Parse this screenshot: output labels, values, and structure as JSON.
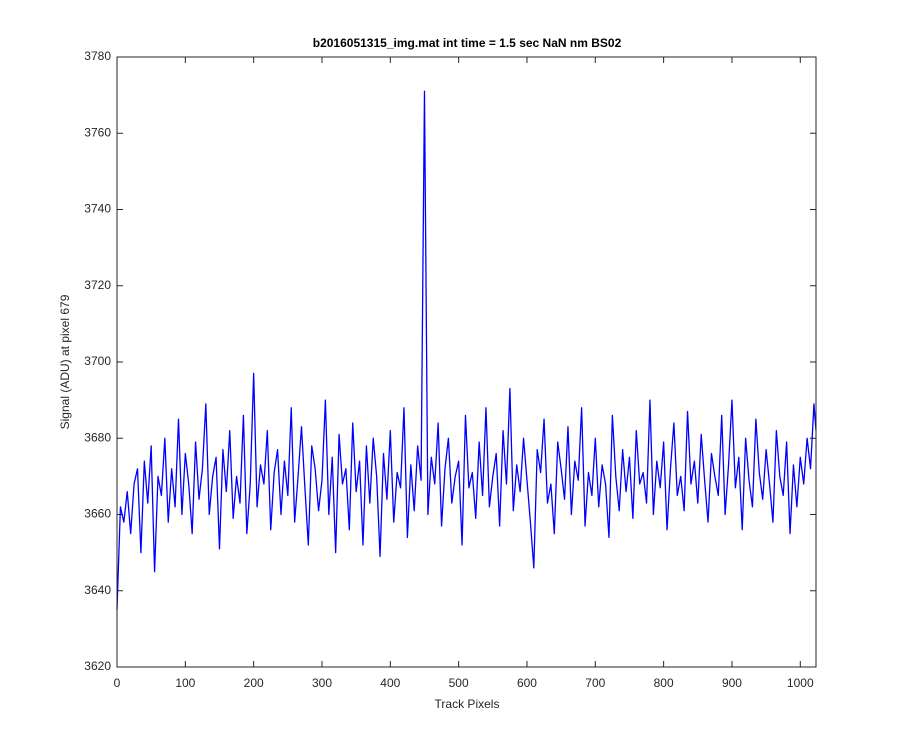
{
  "chart_data": {
    "type": "line",
    "title": "b2016051315_img.mat int time = 1.5 sec  NaN nm BS02",
    "x_label": "Track Pixels",
    "y_label": "Signal (ADU) at pixel 679",
    "xlim": [
      0,
      1023
    ],
    "ylim": [
      3620,
      3780
    ],
    "xticks": [
      0,
      100,
      200,
      300,
      400,
      500,
      600,
      700,
      800,
      900,
      1000
    ],
    "yticks": [
      3620,
      3640,
      3660,
      3680,
      3700,
      3720,
      3740,
      3760,
      3780
    ],
    "grid": false,
    "x": [
      0,
      5,
      10,
      15,
      20,
      25,
      30,
      35,
      40,
      45,
      50,
      55,
      60,
      65,
      70,
      75,
      80,
      85,
      90,
      95,
      100,
      105,
      110,
      115,
      120,
      125,
      130,
      135,
      140,
      145,
      150,
      155,
      160,
      165,
      170,
      175,
      180,
      185,
      190,
      195,
      200,
      205,
      210,
      215,
      220,
      225,
      230,
      235,
      240,
      245,
      250,
      255,
      260,
      265,
      270,
      275,
      280,
      285,
      290,
      295,
      300,
      305,
      310,
      315,
      320,
      325,
      330,
      335,
      340,
      345,
      350,
      355,
      360,
      365,
      370,
      375,
      380,
      385,
      390,
      395,
      400,
      405,
      410,
      415,
      420,
      425,
      430,
      435,
      440,
      445,
      450,
      455,
      460,
      465,
      470,
      475,
      480,
      485,
      490,
      495,
      500,
      505,
      510,
      515,
      520,
      525,
      530,
      535,
      540,
      545,
      550,
      555,
      560,
      565,
      570,
      575,
      580,
      585,
      590,
      595,
      600,
      605,
      610,
      615,
      620,
      625,
      630,
      635,
      640,
      645,
      650,
      655,
      660,
      665,
      670,
      675,
      680,
      685,
      690,
      695,
      700,
      705,
      710,
      715,
      720,
      725,
      730,
      735,
      740,
      745,
      750,
      755,
      760,
      765,
      770,
      775,
      780,
      785,
      790,
      795,
      800,
      805,
      810,
      815,
      820,
      825,
      830,
      835,
      840,
      845,
      850,
      855,
      860,
      865,
      870,
      875,
      880,
      885,
      890,
      895,
      900,
      905,
      910,
      915,
      920,
      925,
      930,
      935,
      940,
      945,
      950,
      955,
      960,
      965,
      970,
      975,
      980,
      985,
      990,
      995,
      1000,
      1005,
      1010,
      1015,
      1020,
      1023
    ],
    "series": [
      {
        "name": "Signal",
        "color": "#0000ff",
        "values": [
          3635,
          3662,
          3658,
          3666,
          3655,
          3668,
          3672,
          3650,
          3674,
          3663,
          3678,
          3645,
          3670,
          3665,
          3680,
          3658,
          3672,
          3662,
          3685,
          3660,
          3676,
          3668,
          3655,
          3679,
          3664,
          3672,
          3689,
          3660,
          3670,
          3675,
          3651,
          3677,
          3666,
          3682,
          3659,
          3670,
          3663,
          3686,
          3655,
          3668,
          3697,
          3662,
          3673,
          3668,
          3682,
          3656,
          3671,
          3677,
          3660,
          3674,
          3665,
          3688,
          3658,
          3670,
          3683,
          3667,
          3652,
          3678,
          3672,
          3661,
          3669,
          3690,
          3660,
          3675,
          3650,
          3681,
          3668,
          3672,
          3656,
          3684,
          3666,
          3674,
          3652,
          3678,
          3663,
          3680,
          3670,
          3649,
          3676,
          3664,
          3682,
          3658,
          3671,
          3667,
          3688,
          3654,
          3673,
          3661,
          3678,
          3669,
          3771,
          3660,
          3675,
          3668,
          3684,
          3657,
          3672,
          3680,
          3663,
          3670,
          3674,
          3652,
          3686,
          3667,
          3671,
          3659,
          3679,
          3665,
          3688,
          3662,
          3670,
          3676,
          3657,
          3682,
          3668,
          3693,
          3661,
          3673,
          3666,
          3680,
          3669,
          3658,
          3646,
          3677,
          3671,
          3685,
          3663,
          3668,
          3655,
          3679,
          3672,
          3664,
          3683,
          3660,
          3674,
          3669,
          3688,
          3657,
          3671,
          3665,
          3680,
          3662,
          3673,
          3668,
          3654,
          3686,
          3670,
          3661,
          3677,
          3666,
          3675,
          3659,
          3682,
          3668,
          3671,
          3663,
          3690,
          3660,
          3674,
          3667,
          3679,
          3656,
          3672,
          3684,
          3665,
          3670,
          3661,
          3687,
          3668,
          3674,
          3663,
          3681,
          3669,
          3658,
          3676,
          3670,
          3665,
          3686,
          3660,
          3673,
          3690,
          3667,
          3675,
          3656,
          3680,
          3669,
          3662,
          3685,
          3671,
          3664,
          3677,
          3668,
          3658,
          3682,
          3670,
          3665,
          3679,
          3655,
          3673,
          3662,
          3675,
          3668,
          3680,
          3672,
          3689,
          3682
        ]
      }
    ]
  }
}
